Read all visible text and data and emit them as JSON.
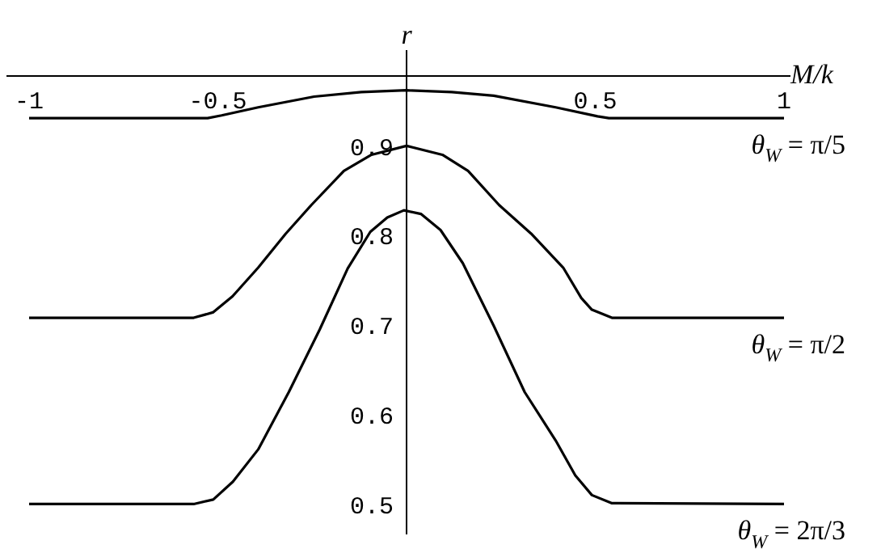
{
  "chart_data": {
    "type": "line",
    "xlabel": "M/k",
    "ylabel": "r",
    "xlim": [
      -1,
      1
    ],
    "ylim": [
      0.47,
      0.981
    ],
    "xticks": [
      -1,
      -0.5,
      0.5,
      1
    ],
    "yticks": [
      0.5,
      0.6,
      0.7,
      0.8,
      0.9
    ],
    "grid": false,
    "legend": false,
    "marker": "none",
    "line_style": "solid",
    "series": [
      {
        "name": "θ$_{W}$ = π/5",
        "color": "#000000",
        "x": [
          -1,
          -0.527,
          -0.49,
          -0.393,
          -0.245,
          -0.12,
          0,
          0.12,
          0.231,
          0.395,
          0.506,
          0.536,
          1
        ],
        "values": [
          0.934,
          0.934,
          0.937,
          0.946,
          0.958,
          0.963,
          0.965,
          0.963,
          0.959,
          0.946,
          0.936,
          0.934,
          0.934
        ]
      },
      {
        "name": "θ$_{W}$ = π/2",
        "color": "#000000",
        "x": [
          -1,
          -0.564,
          -0.513,
          -0.461,
          -0.393,
          -0.32,
          -0.252,
          -0.166,
          -0.093,
          0,
          0.095,
          0.163,
          0.245,
          0.33,
          0.415,
          0.463,
          0.491,
          0.544,
          1
        ],
        "values": [
          0.711,
          0.711,
          0.717,
          0.735,
          0.767,
          0.805,
          0.837,
          0.875,
          0.893,
          0.903,
          0.893,
          0.875,
          0.837,
          0.805,
          0.767,
          0.733,
          0.72,
          0.711,
          0.711
        ]
      },
      {
        "name": "θ$_{W}$ = 2π/3",
        "color": "#000000",
        "x": [
          -1,
          -0.564,
          -0.512,
          -0.46,
          -0.393,
          -0.312,
          -0.23,
          -0.156,
          -0.096,
          -0.051,
          -0.007,
          0.038,
          0.09,
          0.149,
          0.231,
          0.313,
          0.395,
          0.447,
          0.491,
          0.543,
          1
        ],
        "values": [
          0.503,
          0.503,
          0.508,
          0.528,
          0.564,
          0.628,
          0.698,
          0.766,
          0.807,
          0.823,
          0.831,
          0.827,
          0.809,
          0.772,
          0.702,
          0.628,
          0.574,
          0.535,
          0.513,
          0.504,
          0.503
        ]
      }
    ]
  }
}
